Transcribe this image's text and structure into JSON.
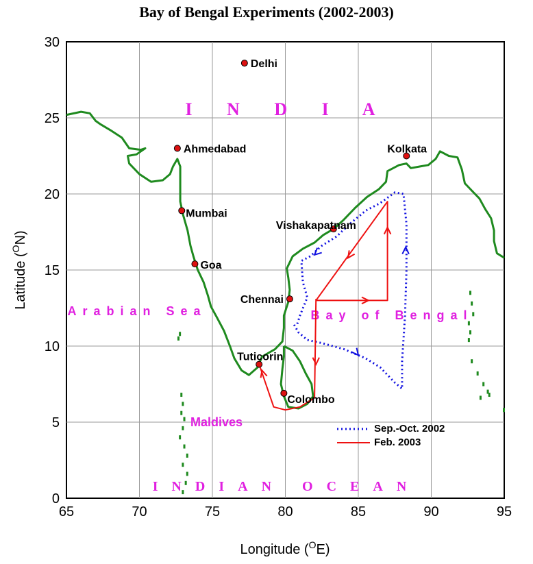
{
  "title": "Bay of Bengal Experiments (2002-2003)",
  "x_axis": {
    "label": "Longitude (",
    "sup": "O",
    "tail": "E)",
    "min": 65,
    "max": 95,
    "ticks": [
      65,
      70,
      75,
      80,
      85,
      90,
      95
    ]
  },
  "y_axis": {
    "label": "Latitude (",
    "sup": "O",
    "tail": "N)",
    "min": 0,
    "max": 30,
    "ticks": [
      0,
      5,
      10,
      15,
      20,
      25,
      30
    ]
  },
  "colors": {
    "coast": "#1f8a1f",
    "track_2002": "#1010e0",
    "track_2003": "#ee1111",
    "labels": "#e020e0",
    "city": "#dd1111"
  },
  "cities": [
    {
      "name": "Delhi",
      "lon": 77.2,
      "lat": 28.6
    },
    {
      "name": "Ahmedabad",
      "lon": 72.6,
      "lat": 23.0
    },
    {
      "name": "Mumbai",
      "lon": 72.9,
      "lat": 18.9
    },
    {
      "name": "Goa",
      "lon": 73.8,
      "lat": 15.4
    },
    {
      "name": "Vishakapatnam",
      "lon": 83.3,
      "lat": 17.7
    },
    {
      "name": "Chennai",
      "lon": 80.3,
      "lat": 13.1
    },
    {
      "name": "Tuticorin",
      "lon": 78.2,
      "lat": 8.8
    },
    {
      "name": "Colombo",
      "lon": 79.9,
      "lat": 6.9
    },
    {
      "name": "Kolkata",
      "lon": 88.3,
      "lat": 22.5
    }
  ],
  "region_labels": {
    "india": "I N D I A",
    "arabian_sea": "Arabian Sea",
    "bay_of_bengal": "Bay of Bengal",
    "maldives": "Maldives",
    "indian_ocean": "INDIAN OCEAN"
  },
  "legend": [
    {
      "label": "Sep.-Oct. 2002",
      "style": "dotted",
      "color": "#1010e0"
    },
    {
      "label": "Feb. 2003",
      "style": "solid",
      "color": "#ee1111"
    }
  ],
  "coastline_main": [
    [
      65.0,
      25.2
    ],
    [
      66.0,
      25.4
    ],
    [
      66.6,
      25.3
    ],
    [
      67.0,
      24.8
    ],
    [
      67.3,
      24.6
    ],
    [
      68.0,
      24.2
    ],
    [
      68.8,
      23.7
    ],
    [
      69.3,
      23.0
    ],
    [
      70.1,
      22.9
    ],
    [
      70.4,
      23.0
    ],
    [
      69.8,
      22.6
    ],
    [
      69.2,
      22.5
    ],
    [
      69.3,
      22.0
    ],
    [
      70.0,
      21.3
    ],
    [
      70.8,
      20.8
    ],
    [
      71.6,
      20.9
    ],
    [
      72.1,
      21.3
    ],
    [
      72.3,
      21.8
    ],
    [
      72.6,
      22.3
    ],
    [
      72.8,
      21.8
    ],
    [
      72.8,
      21.1
    ],
    [
      72.8,
      20.3
    ],
    [
      72.8,
      19.5
    ],
    [
      73.0,
      18.6
    ],
    [
      73.3,
      17.6
    ],
    [
      73.5,
      16.6
    ],
    [
      73.7,
      15.9
    ],
    [
      74.0,
      15.0
    ],
    [
      74.4,
      14.2
    ],
    [
      74.7,
      13.3
    ],
    [
      74.9,
      12.6
    ],
    [
      75.3,
      11.9
    ],
    [
      75.8,
      11.0
    ],
    [
      76.2,
      10.0
    ],
    [
      76.5,
      9.2
    ],
    [
      77.0,
      8.4
    ],
    [
      77.5,
      8.1
    ],
    [
      78.1,
      8.6
    ],
    [
      78.4,
      9.3
    ],
    [
      79.3,
      9.8
    ],
    [
      79.8,
      10.3
    ],
    [
      79.9,
      11.2
    ],
    [
      79.9,
      12.0
    ],
    [
      80.2,
      12.9
    ],
    [
      80.3,
      13.7
    ],
    [
      80.2,
      14.5
    ],
    [
      80.1,
      15.1
    ],
    [
      80.5,
      15.9
    ],
    [
      81.2,
      16.4
    ],
    [
      82.0,
      16.8
    ],
    [
      82.6,
      17.3
    ],
    [
      83.3,
      17.7
    ],
    [
      84.0,
      18.3
    ],
    [
      84.8,
      19.1
    ],
    [
      85.6,
      19.8
    ],
    [
      86.4,
      20.3
    ],
    [
      86.9,
      20.8
    ],
    [
      87.0,
      21.5
    ],
    [
      87.8,
      21.9
    ],
    [
      88.3,
      22.0
    ],
    [
      88.6,
      21.7
    ],
    [
      89.2,
      21.8
    ],
    [
      89.8,
      21.9
    ],
    [
      90.3,
      22.3
    ],
    [
      90.6,
      22.8
    ],
    [
      91.2,
      22.5
    ],
    [
      91.8,
      22.4
    ],
    [
      92.1,
      21.6
    ],
    [
      92.3,
      20.7
    ],
    [
      92.8,
      20.2
    ],
    [
      93.3,
      19.7
    ],
    [
      93.7,
      19.0
    ],
    [
      94.1,
      18.4
    ],
    [
      94.3,
      17.6
    ],
    [
      94.3,
      16.9
    ],
    [
      94.5,
      16.1
    ],
    [
      95.0,
      15.8
    ]
  ],
  "coastline_srilanka": [
    [
      79.9,
      10.0
    ],
    [
      80.5,
      9.7
    ],
    [
      81.0,
      9.0
    ],
    [
      81.4,
      8.2
    ],
    [
      81.8,
      7.5
    ],
    [
      81.9,
      6.7
    ],
    [
      81.5,
      6.2
    ],
    [
      80.9,
      5.9
    ],
    [
      80.2,
      6.0
    ],
    [
      79.9,
      6.7
    ],
    [
      79.7,
      7.5
    ],
    [
      79.8,
      8.5
    ],
    [
      79.9,
      9.3
    ],
    [
      79.9,
      10.0
    ]
  ],
  "track_2003": [
    [
      78.2,
      8.8
    ],
    [
      79.2,
      6.0
    ],
    [
      80.0,
      5.8
    ],
    [
      81.0,
      6.0
    ],
    [
      82.0,
      6.6
    ],
    [
      82.1,
      13.0
    ],
    [
      85.5,
      13.0
    ],
    [
      87.0,
      13.0
    ],
    [
      87.0,
      19.5
    ],
    [
      82.1,
      13.0
    ],
    [
      82.1,
      13.1
    ]
  ],
  "track_2002": [
    [
      80.6,
      11.4
    ],
    [
      80.9,
      10.9
    ],
    [
      81.5,
      10.4
    ],
    [
      82.5,
      10.2
    ],
    [
      84.0,
      9.8
    ],
    [
      85.5,
      9.2
    ],
    [
      86.5,
      8.6
    ],
    [
      87.5,
      7.6
    ],
    [
      88.0,
      7.2
    ],
    [
      88.0,
      9.0
    ],
    [
      88.2,
      12.0
    ],
    [
      88.3,
      15.0
    ],
    [
      88.3,
      18.0
    ],
    [
      88.1,
      20.0
    ],
    [
      87.5,
      20.1
    ],
    [
      86.5,
      19.4
    ],
    [
      85.5,
      18.9
    ],
    [
      84.5,
      18.1
    ],
    [
      83.5,
      17.2
    ],
    [
      82.5,
      16.6
    ],
    [
      81.7,
      15.9
    ],
    [
      81.1,
      15.6
    ],
    [
      81.2,
      14.2
    ],
    [
      81.5,
      13.2
    ],
    [
      81.0,
      12.0
    ],
    [
      80.8,
      11.4
    ]
  ],
  "islands": [
    [
      72.9,
      6.8
    ],
    [
      73.0,
      6.2
    ],
    [
      72.9,
      5.6
    ],
    [
      73.1,
      5.2
    ],
    [
      73.0,
      4.6
    ],
    [
      72.8,
      4.0
    ],
    [
      73.1,
      3.4
    ],
    [
      73.3,
      2.8
    ],
    [
      73.0,
      2.2
    ],
    [
      73.3,
      1.6
    ],
    [
      73.2,
      1.0
    ],
    [
      73.0,
      0.4
    ],
    [
      72.8,
      10.8
    ],
    [
      72.7,
      10.5
    ],
    [
      92.7,
      13.5
    ],
    [
      92.8,
      12.8
    ],
    [
      92.9,
      12.1
    ],
    [
      92.6,
      11.5
    ],
    [
      92.7,
      10.9
    ],
    [
      92.6,
      10.4
    ],
    [
      92.8,
      9.0
    ],
    [
      93.2,
      8.2
    ],
    [
      93.6,
      7.5
    ],
    [
      93.9,
      7.0
    ],
    [
      93.4,
      6.6
    ],
    [
      94.0,
      6.8
    ],
    [
      95.0,
      5.8
    ]
  ]
}
